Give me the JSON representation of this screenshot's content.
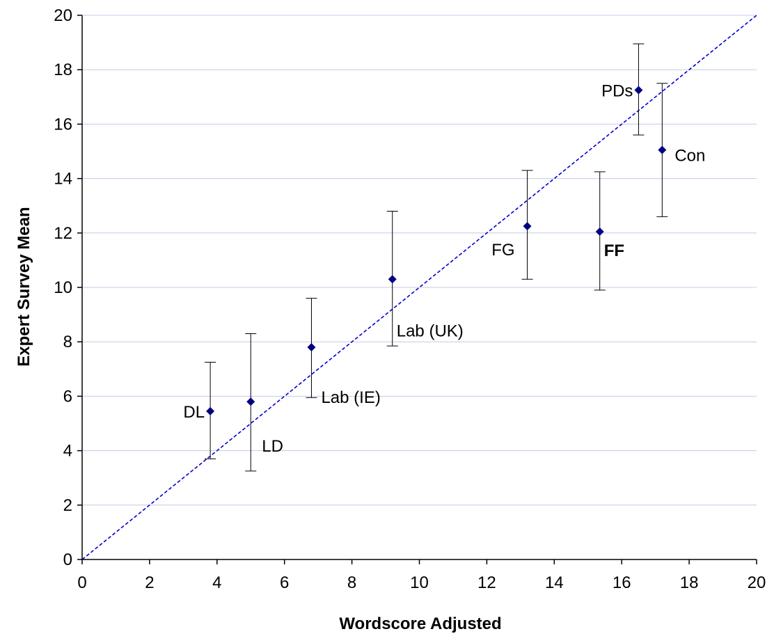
{
  "chart_data": {
    "type": "scatter",
    "title": "",
    "xlabel": "Wordscore Adjusted",
    "ylabel": "Expert Survey Mean",
    "xlim": [
      0,
      20
    ],
    "ylim": [
      0,
      20
    ],
    "x_ticks": [
      "0",
      "2",
      "4",
      "6",
      "8",
      "10",
      "12",
      "14",
      "16",
      "18",
      "20"
    ],
    "y_ticks": [
      "0",
      "2",
      "4",
      "6",
      "8",
      "10",
      "12",
      "14",
      "16",
      "18",
      "20"
    ],
    "grid": "horizontal",
    "reference_line": {
      "style": "dashed",
      "color": "#0000cc",
      "from": [
        0,
        0
      ],
      "to": [
        20,
        20
      ]
    },
    "marker_color": "#000080",
    "gridline_color": "#c8c8e6",
    "points": [
      {
        "label": "DL",
        "x": 3.8,
        "y": 5.45,
        "err_low": 3.7,
        "err_high": 7.25,
        "bold": false,
        "label_pos": "left"
      },
      {
        "label": "LD",
        "x": 5.0,
        "y": 5.8,
        "err_low": 3.25,
        "err_high": 8.3,
        "bold": false,
        "label_pos": "below-right"
      },
      {
        "label": "Lab (IE)",
        "x": 6.8,
        "y": 7.8,
        "err_low": 5.95,
        "err_high": 9.6,
        "bold": false,
        "label_pos": "below-right"
      },
      {
        "label": "Lab (UK)",
        "x": 9.2,
        "y": 10.3,
        "err_low": 7.85,
        "err_high": 12.8,
        "bold": false,
        "label_pos": "below-right"
      },
      {
        "label": "FG",
        "x": 13.2,
        "y": 12.25,
        "err_low": 10.3,
        "err_high": 14.3,
        "bold": false,
        "label_pos": "below-left"
      },
      {
        "label": "FF",
        "x": 15.35,
        "y": 12.05,
        "err_low": 9.9,
        "err_high": 14.25,
        "bold": true,
        "label_pos": "below-right"
      },
      {
        "label": "PDs",
        "x": 16.5,
        "y": 17.25,
        "err_low": 15.6,
        "err_high": 18.95,
        "bold": false,
        "label_pos": "left"
      },
      {
        "label": "Con",
        "x": 17.2,
        "y": 15.05,
        "err_low": 12.6,
        "err_high": 17.5,
        "bold": false,
        "label_pos": "right"
      }
    ]
  }
}
